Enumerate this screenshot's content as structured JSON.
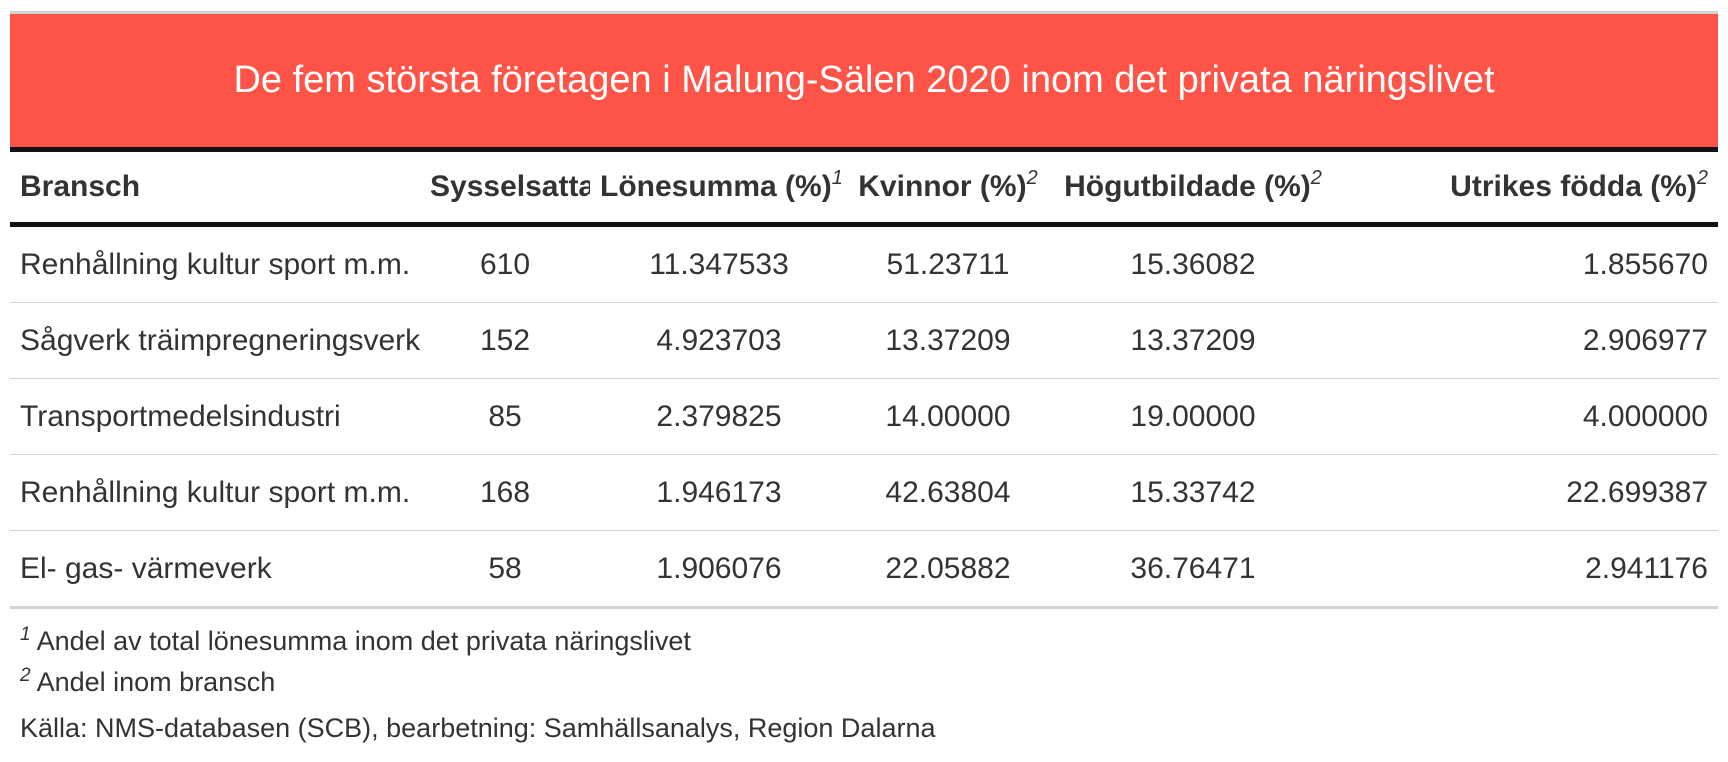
{
  "chart_data": {
    "type": "table",
    "title": "De fem största företagen i Malung-Sälen 2020 inom det privata näringslivet",
    "columns": [
      {
        "label": "Bransch",
        "mark": ""
      },
      {
        "label": "Sysselsatta",
        "mark": ""
      },
      {
        "label": "Lönesumma (%)",
        "mark": "1"
      },
      {
        "label": "Kvinnor (%)",
        "mark": "2"
      },
      {
        "label": "Högutbildade (%)",
        "mark": "2"
      },
      {
        "label": "Utrikes födda (%)",
        "mark": "2"
      }
    ],
    "rows": [
      [
        "Renhållning kultur sport m.m.",
        "610",
        "11.347533",
        "51.23711",
        "15.36082",
        "1.855670"
      ],
      [
        "Sågverk träimpregneringsverk",
        "152",
        "4.923703",
        "13.37209",
        "13.37209",
        "2.906977"
      ],
      [
        "Transportmedelsindustri",
        "85",
        "2.379825",
        "14.00000",
        "19.00000",
        "4.000000"
      ],
      [
        "Renhållning kultur sport m.m.",
        "168",
        "1.946173",
        "42.63804",
        "15.33742",
        "22.699387"
      ],
      [
        "El- gas- värmeverk",
        "58",
        "1.906076",
        "22.05882",
        "36.76471",
        "2.941176"
      ]
    ],
    "footnotes": [
      {
        "mark": "1",
        "text": "Andel av total lönesumma inom det privata näringslivet"
      },
      {
        "mark": "2",
        "text": "Andel inom bransch"
      }
    ],
    "source": "Källa: NMS-databasen (SCB), bearbetning: Samhällsanalys, Region Dalarna"
  },
  "colors": {
    "header_background": "#fe5347",
    "header_text": "#ffffff"
  }
}
